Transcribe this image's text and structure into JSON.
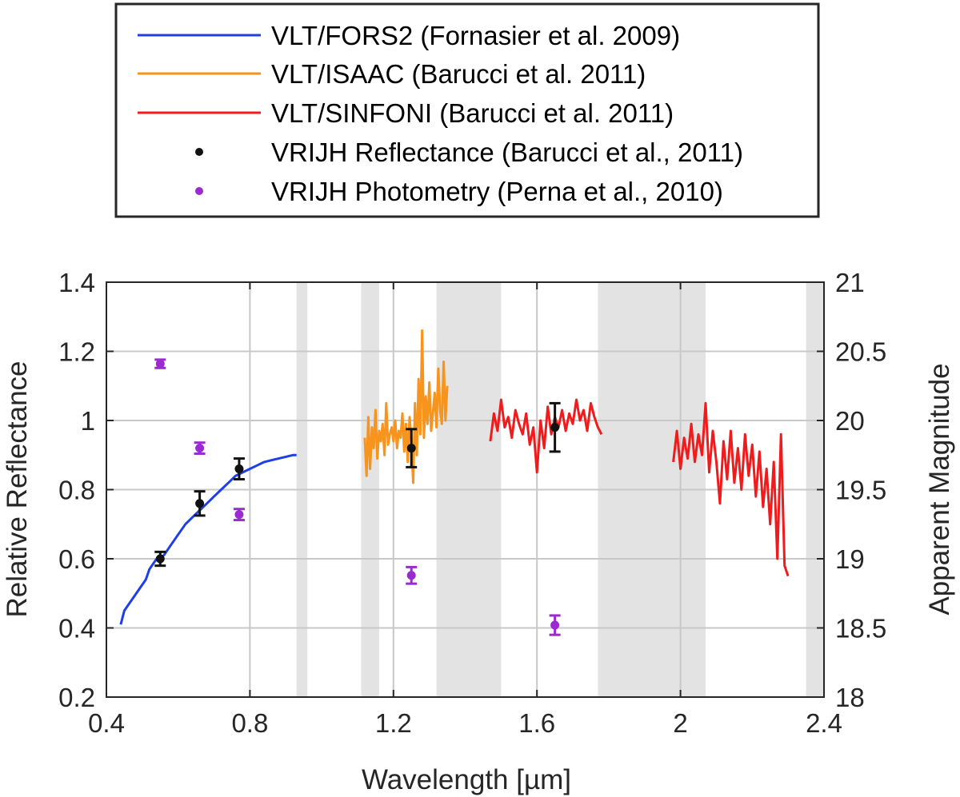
{
  "chart_data": {
    "type": "line",
    "xlabel": "Wavelength [µm]",
    "ylabel": "Relative Reflectance",
    "y2label": "Apparent Magnitude",
    "xlim": [
      0.4,
      2.4
    ],
    "ylim": [
      0.2,
      1.4
    ],
    "y2lim": [
      18,
      21
    ],
    "xticks": [
      "0.4",
      "0.8",
      "1.2",
      "1.6",
      "2",
      "2.4"
    ],
    "xtick_values": [
      0.4,
      0.8,
      1.2,
      1.6,
      2.0,
      2.4
    ],
    "yticks": [
      "0.2",
      "0.4",
      "0.6",
      "0.8",
      "1",
      "1.2",
      "1.4"
    ],
    "ytick_values": [
      0.2,
      0.4,
      0.6,
      0.8,
      1.0,
      1.2,
      1.4
    ],
    "y2ticks": [
      "18",
      "18.5",
      "19",
      "19.5",
      "20",
      "20.5",
      "21"
    ],
    "y2tick_values": [
      18,
      18.5,
      19,
      19.5,
      20,
      20.5,
      21
    ],
    "grid": true,
    "legend_position": "top-center, outside plot",
    "shaded_bands": [
      [
        0.93,
        0.96
      ],
      [
        1.11,
        1.16
      ],
      [
        1.32,
        1.5
      ],
      [
        1.77,
        2.07
      ],
      [
        2.35,
        2.4
      ]
    ],
    "series": [
      {
        "name": "VLT/FORS2 (Fornasier et al. 2009)",
        "color": "#1f3fe6",
        "style": "line",
        "x": [
          0.44,
          0.45,
          0.47,
          0.49,
          0.51,
          0.52,
          0.54,
          0.56,
          0.58,
          0.6,
          0.62,
          0.64,
          0.66,
          0.68,
          0.7,
          0.72,
          0.74,
          0.76,
          0.78,
          0.8,
          0.82,
          0.84,
          0.86,
          0.88,
          0.9,
          0.92,
          0.93
        ],
        "values": [
          0.41,
          0.45,
          0.48,
          0.51,
          0.54,
          0.57,
          0.6,
          0.61,
          0.64,
          0.67,
          0.7,
          0.72,
          0.74,
          0.76,
          0.78,
          0.8,
          0.82,
          0.84,
          0.85,
          0.86,
          0.87,
          0.88,
          0.885,
          0.89,
          0.895,
          0.9,
          0.9
        ]
      },
      {
        "name": "VLT/ISAAC (Barucci et al. 2011)",
        "color": "#f7941d",
        "style": "line",
        "x": [
          1.12,
          1.125,
          1.13,
          1.135,
          1.14,
          1.145,
          1.15,
          1.155,
          1.16,
          1.165,
          1.17,
          1.175,
          1.18,
          1.185,
          1.19,
          1.195,
          1.2,
          1.205,
          1.21,
          1.215,
          1.22,
          1.225,
          1.23,
          1.235,
          1.24,
          1.245,
          1.25,
          1.255,
          1.26,
          1.265,
          1.27,
          1.275,
          1.28,
          1.285,
          1.29,
          1.295,
          1.3,
          1.305,
          1.31,
          1.315,
          1.32,
          1.325,
          1.33,
          1.335,
          1.34,
          1.345,
          1.35
        ],
        "values": [
          0.95,
          0.84,
          1.01,
          0.86,
          0.98,
          0.92,
          1.03,
          0.89,
          0.97,
          0.94,
          0.99,
          0.9,
          1.05,
          0.93,
          0.96,
          0.98,
          0.94,
          1.0,
          0.92,
          0.97,
          0.95,
          1.02,
          0.91,
          0.99,
          0.88,
          1.01,
          0.94,
          0.82,
          1.05,
          0.9,
          1.12,
          0.96,
          1.26,
          0.95,
          1.07,
          0.99,
          1.11,
          0.97,
          1.02,
          1.08,
          0.98,
          1.15,
          1.03,
          0.99,
          1.17,
          1.0,
          1.1
        ]
      },
      {
        "name": "VLT/SINFONI (Barucci et al. 2011)",
        "color": "#ee1c1c",
        "style": "line",
        "x": [
          1.47,
          1.48,
          1.49,
          1.5,
          1.51,
          1.52,
          1.53,
          1.54,
          1.55,
          1.56,
          1.57,
          1.58,
          1.59,
          1.6,
          1.61,
          1.62,
          1.63,
          1.64,
          1.65,
          1.66,
          1.67,
          1.68,
          1.69,
          1.7,
          1.71,
          1.72,
          1.73,
          1.74,
          1.75,
          1.76,
          1.77,
          1.78,
          null,
          1.98,
          1.99,
          2.0,
          2.01,
          2.02,
          2.03,
          2.04,
          2.05,
          2.06,
          2.07,
          2.08,
          2.09,
          2.1,
          2.11,
          2.12,
          2.13,
          2.14,
          2.15,
          2.16,
          2.17,
          2.18,
          2.19,
          2.2,
          2.21,
          2.22,
          2.23,
          2.24,
          2.25,
          2.26,
          2.27,
          2.28,
          2.29,
          2.3
        ],
        "values": [
          0.94,
          1.02,
          0.97,
          1.06,
          0.98,
          1.01,
          0.95,
          1.03,
          0.99,
          0.96,
          1.02,
          0.93,
          0.98,
          0.85,
          1.0,
          0.92,
          1.04,
          0.96,
          1.01,
          0.98,
          1.03,
          0.97,
          1.02,
          0.99,
          1.06,
          1.0,
          1.03,
          0.97,
          1.05,
          1.01,
          0.98,
          0.96,
          null,
          0.88,
          0.97,
          0.86,
          0.95,
          0.89,
          0.99,
          0.88,
          0.96,
          0.9,
          1.05,
          0.85,
          0.97,
          0.88,
          0.76,
          0.94,
          0.83,
          0.97,
          0.82,
          0.92,
          0.8,
          0.96,
          0.84,
          0.93,
          0.78,
          0.91,
          0.75,
          0.86,
          0.7,
          0.88,
          0.6,
          0.96,
          0.58,
          0.55
        ]
      },
      {
        "name": "VRIJH Reflectance (Barucci et al., 2011)",
        "color": "#111111",
        "style": "errorbar",
        "axis": "left",
        "x": [
          0.55,
          0.66,
          0.77,
          1.25,
          1.65
        ],
        "values": [
          0.6,
          0.76,
          0.86,
          0.92,
          0.98
        ],
        "err": [
          0.02,
          0.035,
          0.03,
          0.055,
          0.07
        ]
      },
      {
        "name": "VRIJH Photometry (Perna et al., 2010)",
        "color": "#9a2bd0",
        "style": "errorbar",
        "axis": "right",
        "x": [
          0.55,
          0.66,
          0.77,
          1.25,
          1.65
        ],
        "values": [
          20.41,
          19.8,
          19.32,
          18.88,
          18.52
        ],
        "err": [
          0.03,
          0.04,
          0.04,
          0.06,
          0.07
        ]
      }
    ]
  }
}
